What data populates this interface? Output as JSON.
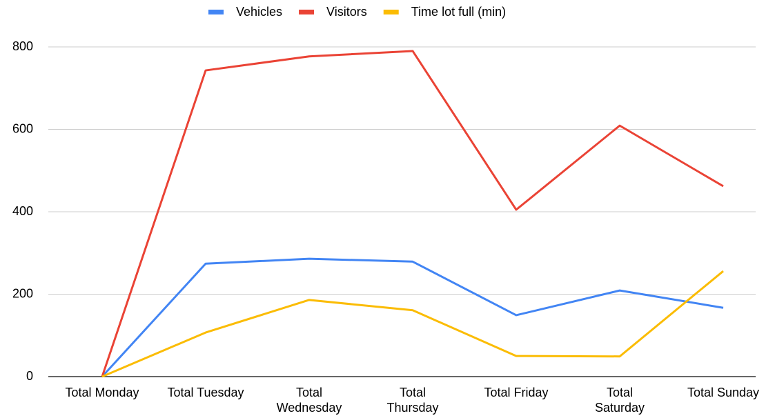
{
  "chart_data": {
    "type": "line",
    "categories": [
      "Total Monday",
      "Total Tuesday",
      "Total Wednesday",
      "Total Thursday",
      "Total Friday",
      "Total Saturday",
      "Total Sunday"
    ],
    "series": [
      {
        "name": "Vehicles",
        "color": "#4285f4",
        "values": [
          0,
          274,
          286,
          279,
          149,
          209,
          167
        ]
      },
      {
        "name": "Visitors",
        "color": "#ea4335",
        "values": [
          0,
          743,
          777,
          790,
          405,
          609,
          462
        ]
      },
      {
        "name": "Time lot full (min)",
        "color": "#fbbc04",
        "values": [
          0,
          107,
          186,
          161,
          50,
          49,
          256
        ]
      }
    ],
    "ylim": [
      0,
      800
    ],
    "yticks": [
      0,
      200,
      400,
      600,
      800
    ],
    "grid": true,
    "legend": "top"
  }
}
